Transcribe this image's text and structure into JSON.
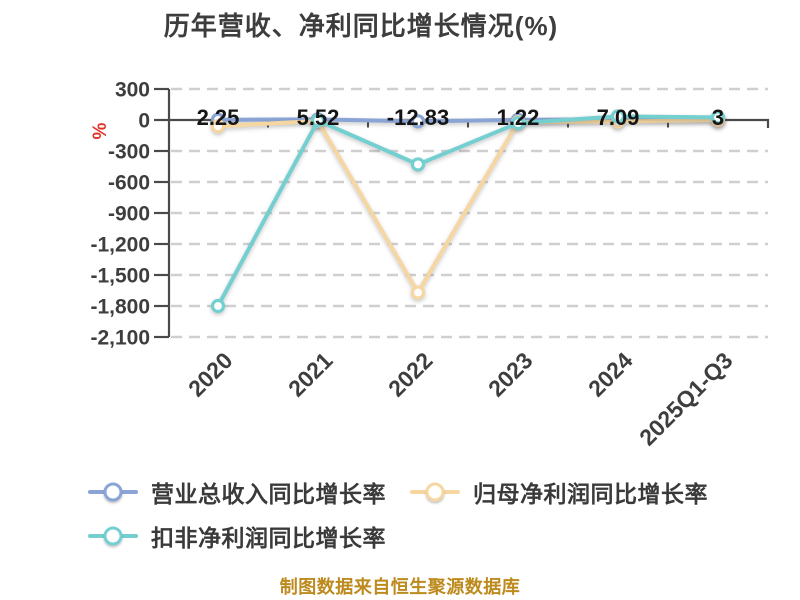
{
  "title": "历年营收、净利同比增长情况(%)",
  "footer": "制图数据来自恒生聚源数据库",
  "colors": {
    "background": "#ffffff",
    "title": "#3d3d3d",
    "axis": "#4a4a4a",
    "grid": "#cfcfcf",
    "tick_label": "#3e3e3e",
    "data_label": "#151515",
    "unit_label": "#e0352b",
    "legend_text": "#3a3a3a",
    "footer": "#bd8a1e",
    "marker_fill": "#ffffff"
  },
  "chart_data": {
    "type": "line",
    "title": "历年营收、净利同比增长情况(%)",
    "xlabel": "",
    "ylabel": "%",
    "ylim": [
      -2100,
      300
    ],
    "grid": true,
    "legend_position": "bottom",
    "categories": [
      "2020",
      "2021",
      "2022",
      "2023",
      "2024",
      "2025Q1-Q3"
    ],
    "yticks": [
      300,
      0,
      -300,
      -600,
      -900,
      -1200,
      -1500,
      -1800,
      -2100
    ],
    "ytick_labels": [
      "300",
      "0",
      "-300",
      "-600",
      "-900",
      "-1,200",
      "-1,500",
      "-1,800",
      "-2,100"
    ],
    "series": [
      {
        "name": "营业总收入同比增长率",
        "color": "#8aa4d6",
        "values": [
          2.25,
          5.52,
          -12.83,
          1.22,
          7.09,
          3
        ],
        "labels": [
          "2.25",
          "5.52",
          "-12.83",
          "1.22",
          "7.09",
          "3"
        ]
      },
      {
        "name": "归母净利润同比增长率",
        "color": "#f6d7a2",
        "values": [
          -60,
          -10,
          -1670,
          -20,
          -15,
          0
        ],
        "labels": []
      },
      {
        "name": "扣非净利润同比增长率",
        "color": "#74cfd0",
        "values": [
          -1800,
          -5,
          -430,
          -30,
          35,
          25
        ],
        "labels": []
      }
    ]
  }
}
